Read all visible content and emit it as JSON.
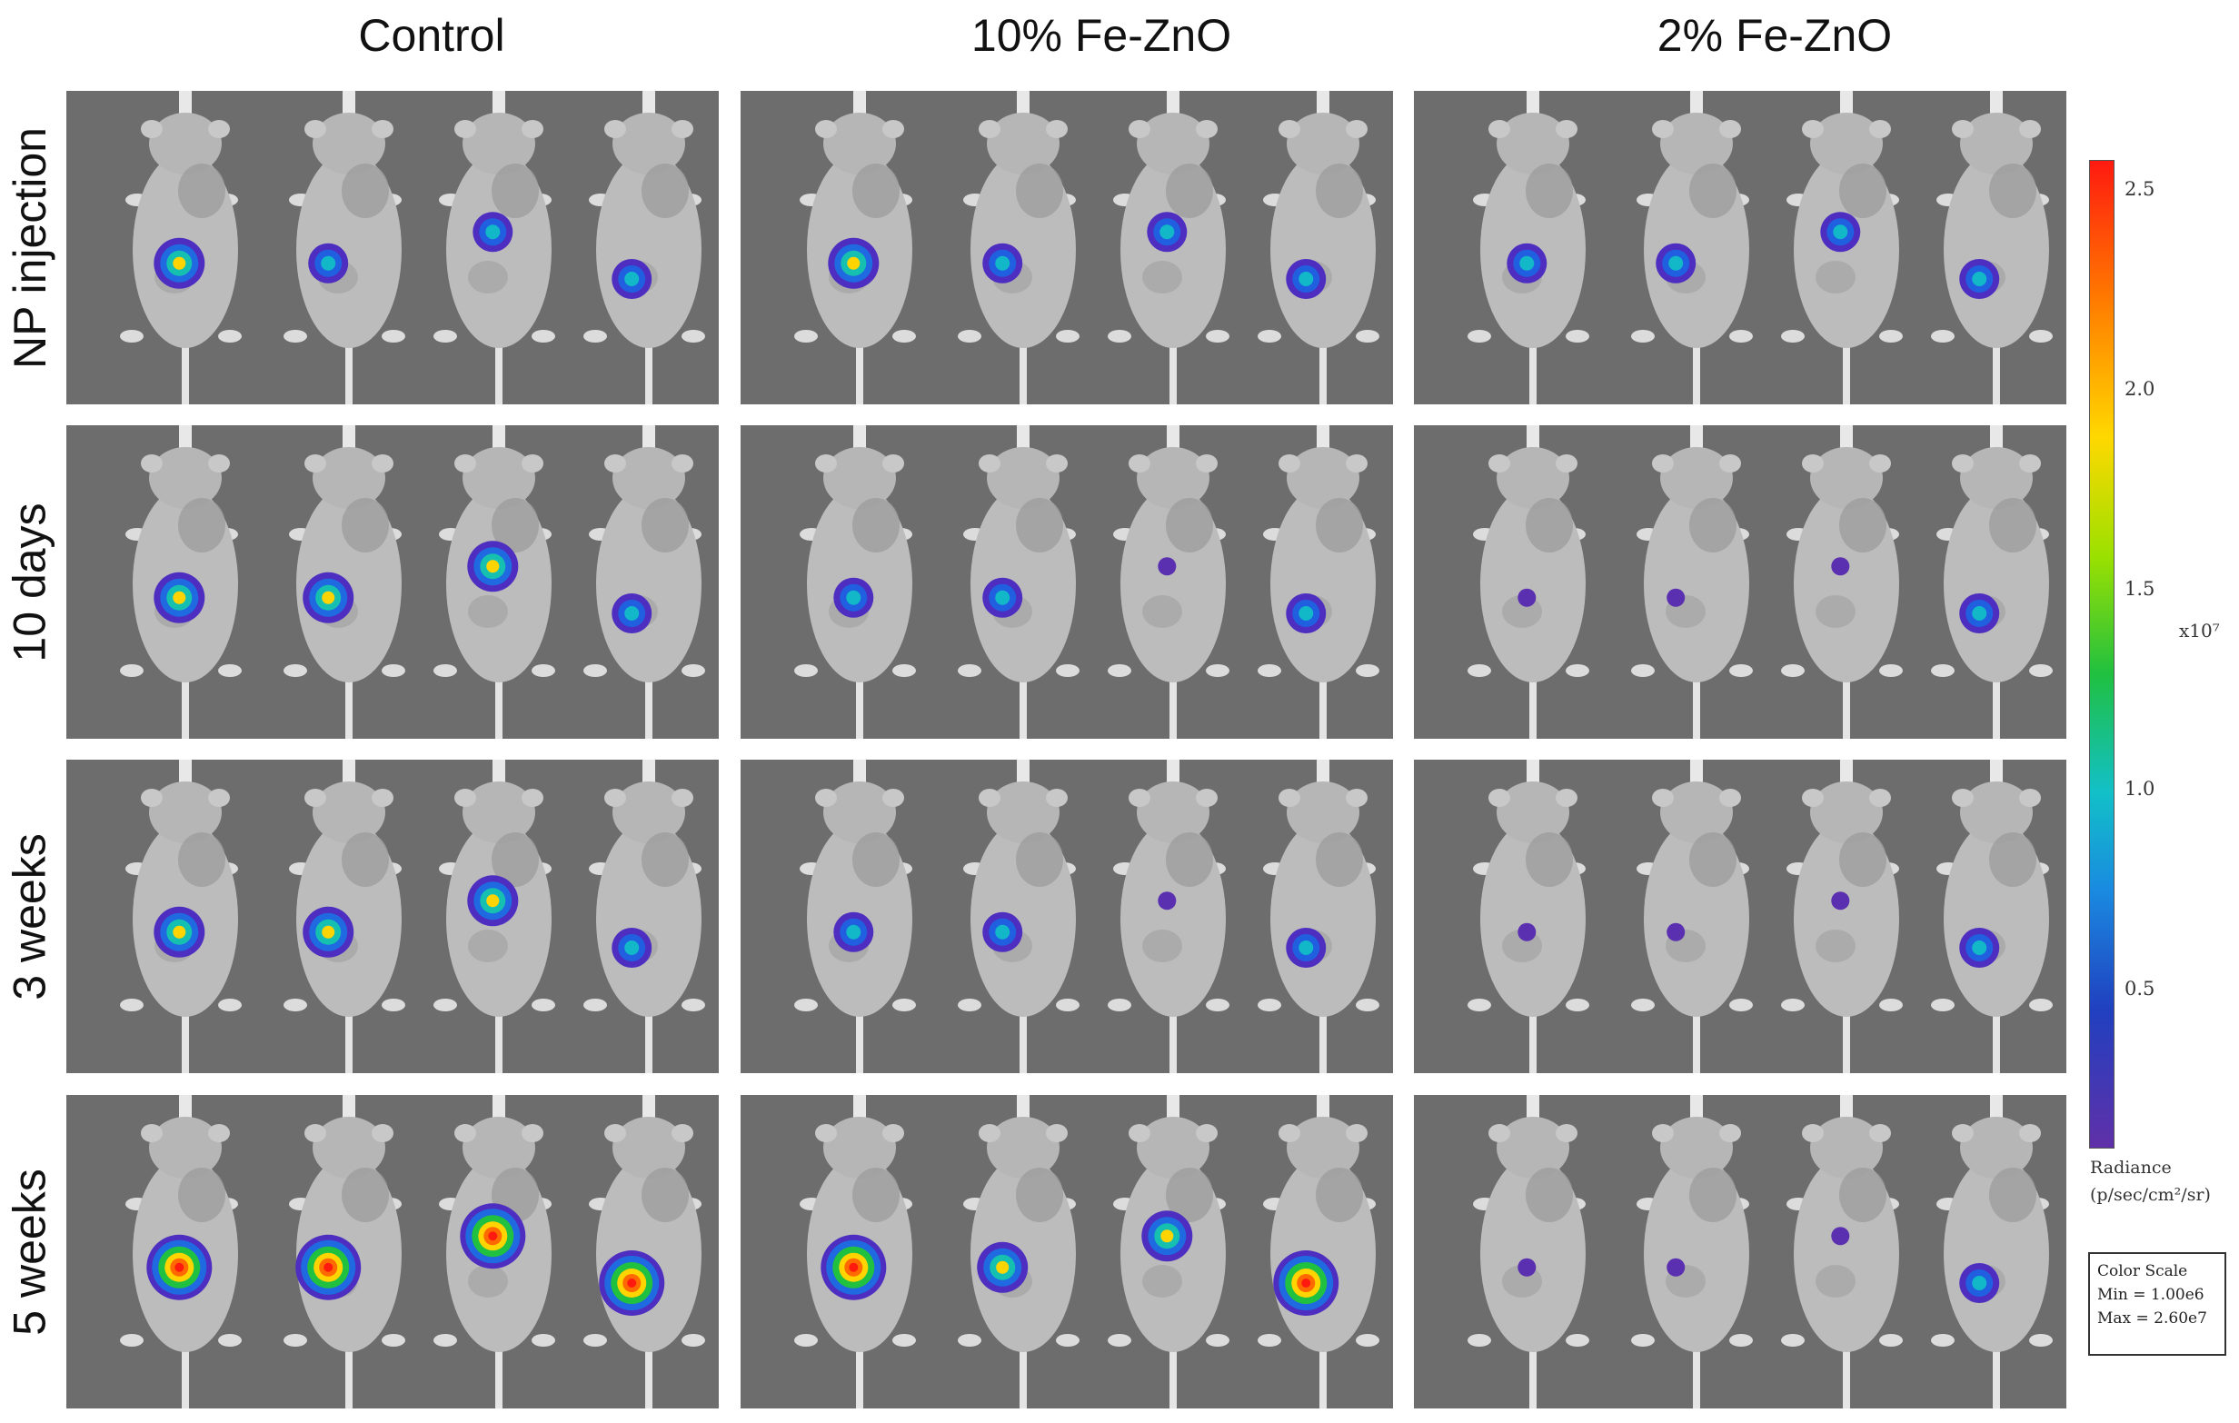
{
  "columns": [
    "Control",
    "10% Fe-ZnO",
    "2% Fe-ZnO"
  ],
  "rows": [
    "NP injection",
    "10 days",
    "3 weeks",
    "5 weeks"
  ],
  "colorbar": {
    "ticks": [
      "2.5",
      "2.0",
      "1.5",
      "1.0",
      "0.5"
    ],
    "exponent": "x10⁷",
    "label_line1": "Radiance",
    "label_line2": "(p/sec/cm²/sr)",
    "box_title": "Color Scale",
    "box_min": "Min = 1.00e6",
    "box_max": "Max = 2.60e7",
    "colors": [
      "#ff1a10",
      "#ff7a00",
      "#ffd800",
      "#9ce000",
      "#20c040",
      "#12c0c8",
      "#1a8ae0",
      "#2040c0",
      "#6030a8"
    ]
  },
  "signal_levels": [
    [
      [
        3,
        2,
        2,
        2
      ],
      [
        3,
        2,
        2,
        2
      ],
      [
        2,
        2,
        2,
        2
      ]
    ],
    [
      [
        3,
        3,
        3,
        2
      ],
      [
        2,
        2,
        1,
        2
      ],
      [
        1,
        1,
        1,
        2
      ]
    ],
    [
      [
        3,
        3,
        3,
        2
      ],
      [
        2,
        2,
        1,
        2
      ],
      [
        1,
        1,
        1,
        2
      ]
    ],
    [
      [
        4,
        4,
        4,
        4
      ],
      [
        4,
        3,
        3,
        4
      ],
      [
        1,
        1,
        1,
        2
      ]
    ]
  ]
}
